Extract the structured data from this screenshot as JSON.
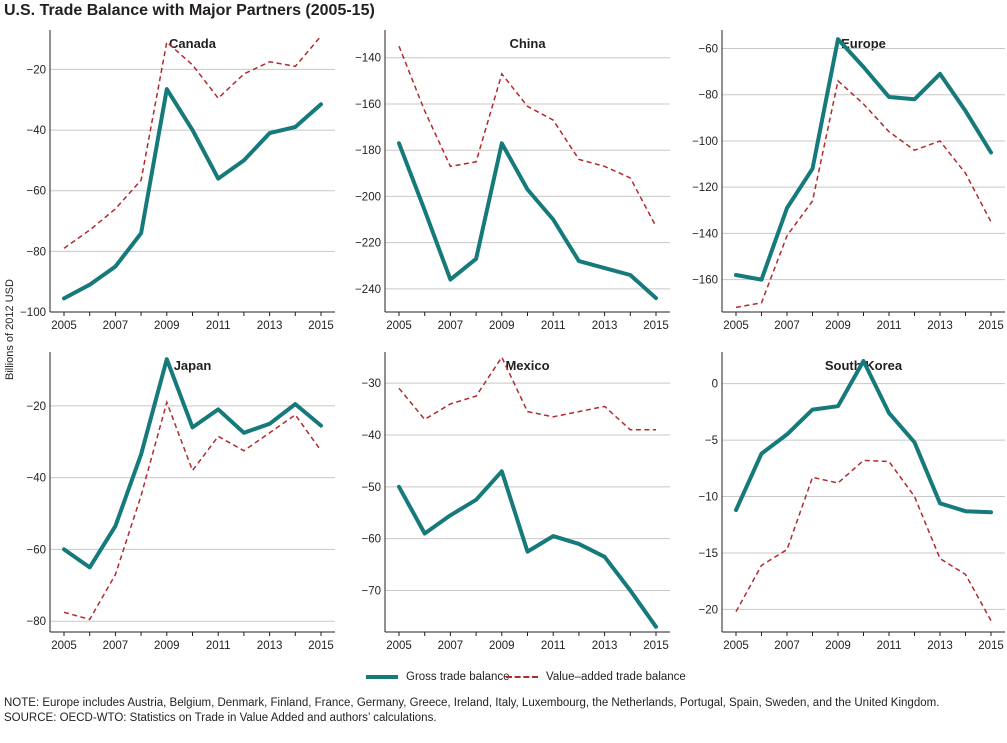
{
  "title": "U.S. Trade Balance with Major Partners (2005-15)",
  "ylabel": "Billions of 2012 USD",
  "legend": {
    "gross": "Gross trade balance",
    "value_added": "Value–added trade balance"
  },
  "colors": {
    "gross": "#167a7b",
    "value_added": "#b22a2e",
    "grid": "#c8c8c8",
    "axis": "#231f20"
  },
  "note": "NOTE: Europe includes Austria, Belgium, Denmark, Finland, France, Germany, Greece, Ireland, Italy, Luxembourg, the Netherlands, Portugal, Spain, Sweden, and the United Kingdom.",
  "source": "SOURCE: OECD-WTO: Statistics on Trade in Value Added and authors’ calculations.",
  "chart_data": [
    {
      "type": "line",
      "title": "Canada",
      "x": [
        2005,
        2006,
        2007,
        2008,
        2009,
        2010,
        2011,
        2012,
        2013,
        2014,
        2015
      ],
      "xticks": [
        2005,
        2007,
        2009,
        2011,
        2013,
        2015
      ],
      "yticks": [
        -100,
        -80,
        -60,
        -40,
        -20
      ],
      "ylim": [
        -100,
        -7
      ],
      "series": [
        {
          "name": "Gross trade balance",
          "values": [
            -95.5,
            -91,
            -85,
            -74,
            -26.5,
            -40,
            -56,
            -50,
            -41,
            -39,
            -31.5
          ]
        },
        {
          "name": "Value–added trade balance",
          "values": [
            -79,
            -73,
            -66,
            -56.5,
            -11,
            -18.5,
            -29.5,
            -21.5,
            -17.5,
            -19,
            -9
          ]
        }
      ]
    },
    {
      "type": "line",
      "title": "China",
      "x": [
        2005,
        2006,
        2007,
        2008,
        2009,
        2010,
        2011,
        2012,
        2013,
        2014,
        2015
      ],
      "xticks": [
        2005,
        2007,
        2009,
        2011,
        2013,
        2015
      ],
      "yticks": [
        -240,
        -220,
        -200,
        -180,
        -160,
        -140
      ],
      "ylim": [
        -250,
        -128
      ],
      "series": [
        {
          "name": "Gross trade balance",
          "values": [
            -177,
            -206,
            -236,
            -227,
            -177,
            -197,
            -210,
            -228,
            -231,
            -234,
            -244
          ]
        },
        {
          "name": "Value–added trade balance",
          "values": [
            -135,
            -163,
            -187,
            -185,
            -147,
            -161,
            -167,
            -184,
            -187,
            -192,
            -213
          ]
        }
      ]
    },
    {
      "type": "line",
      "title": "Europe",
      "x": [
        2005,
        2006,
        2007,
        2008,
        2009,
        2010,
        2011,
        2012,
        2013,
        2014,
        2015
      ],
      "xticks": [
        2005,
        2007,
        2009,
        2011,
        2013,
        2015
      ],
      "yticks": [
        -160,
        -140,
        -120,
        -100,
        -80,
        -60
      ],
      "ylim": [
        -174,
        -52
      ],
      "series": [
        {
          "name": "Gross trade balance",
          "values": [
            -158,
            -160,
            -129,
            -112,
            -56,
            -68,
            -81,
            -82,
            -71,
            -87,
            -105
          ]
        },
        {
          "name": "Value–added trade balance",
          "values": [
            -172,
            -170,
            -141,
            -126,
            -74,
            -84,
            -96,
            -104,
            -100,
            -114,
            -135
          ]
        }
      ]
    },
    {
      "type": "line",
      "title": "Japan",
      "x": [
        2005,
        2006,
        2007,
        2008,
        2009,
        2010,
        2011,
        2012,
        2013,
        2014,
        2015
      ],
      "xticks": [
        2005,
        2007,
        2009,
        2011,
        2013,
        2015
      ],
      "yticks": [
        -80,
        -60,
        -40,
        -20
      ],
      "ylim": [
        -83,
        -5
      ],
      "series": [
        {
          "name": "Gross trade balance",
          "values": [
            -60,
            -65,
            -53.5,
            -33.5,
            -7,
            -26,
            -21,
            -27.5,
            -25,
            -19.5,
            -25.5
          ]
        },
        {
          "name": "Value–added trade balance",
          "values": [
            -77.5,
            -79.5,
            -67,
            -45,
            -19,
            -38,
            -28.5,
            -32.5,
            -27.5,
            -22.5,
            -32.5
          ]
        }
      ]
    },
    {
      "type": "line",
      "title": "Mexico",
      "x": [
        2005,
        2006,
        2007,
        2008,
        2009,
        2010,
        2011,
        2012,
        2013,
        2014,
        2015
      ],
      "xticks": [
        2005,
        2007,
        2009,
        2011,
        2013,
        2015
      ],
      "yticks": [
        -70,
        -60,
        -50,
        -40,
        -30
      ],
      "ylim": [
        -78,
        -24
      ],
      "series": [
        {
          "name": "Gross trade balance",
          "values": [
            -50,
            -59,
            -55.5,
            -52.5,
            -47,
            -62.5,
            -59.5,
            -61,
            -63.5,
            -70,
            -77
          ]
        },
        {
          "name": "Value–added trade balance",
          "values": [
            -31,
            -37,
            -34,
            -32.5,
            -25,
            -35.5,
            -36.5,
            -35.5,
            -34.5,
            -39,
            -39
          ]
        }
      ]
    },
    {
      "type": "line",
      "title": "South Korea",
      "x": [
        2005,
        2006,
        2007,
        2008,
        2009,
        2010,
        2011,
        2012,
        2013,
        2014,
        2015
      ],
      "xticks": [
        2005,
        2007,
        2009,
        2011,
        2013,
        2015
      ],
      "yticks": [
        -20,
        -15,
        -10,
        -5,
        0
      ],
      "ylim": [
        -22,
        2.8
      ],
      "series": [
        {
          "name": "Gross trade balance",
          "values": [
            -11.2,
            -6.2,
            -4.5,
            -2.3,
            -2,
            2,
            -2.6,
            -5.2,
            -10.6,
            -11.3,
            -11.4
          ]
        },
        {
          "name": "Value–added trade balance",
          "values": [
            -20.2,
            -16.1,
            -14.7,
            -8.3,
            -8.8,
            -6.8,
            -6.9,
            -10,
            -15.5,
            -16.9,
            -21
          ]
        }
      ]
    }
  ]
}
